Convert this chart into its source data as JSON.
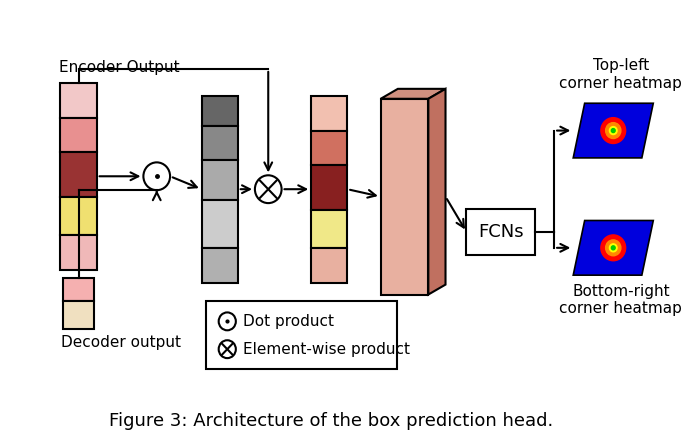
{
  "title": "Figure 3: Architecture of the box prediction head.",
  "bg_color": "#ffffff",
  "encoder_label": "Encoder Output",
  "decoder_label": "Decoder output",
  "fcns_label": "FCNs",
  "topleft_label": "Top-left\ncorner heatmap",
  "bottomright_label": "Bottom-right\ncorner heatmap",
  "legend_dot": "Dot product",
  "legend_cross": "Element-wise product",
  "encoder_block_colors": [
    "#f2c8c8",
    "#e89090",
    "#993333",
    "#f0e070",
    "#f0b8b8"
  ],
  "gray_block_colors": [
    "#666666",
    "#888888",
    "#aaaaaa",
    "#cccccc",
    "#b0b0b0"
  ],
  "output_block_colors": [
    "#f2c0b0",
    "#d07060",
    "#882020",
    "#f0e888",
    "#e8b0a0"
  ],
  "decoder_block_colors": [
    "#f5b0b0",
    "#f0e0c0"
  ],
  "fcn_front_color": "#e8b0a0",
  "fcn_top_color": "#d09080",
  "fcn_right_color": "#c07060",
  "line_color": "#000000"
}
